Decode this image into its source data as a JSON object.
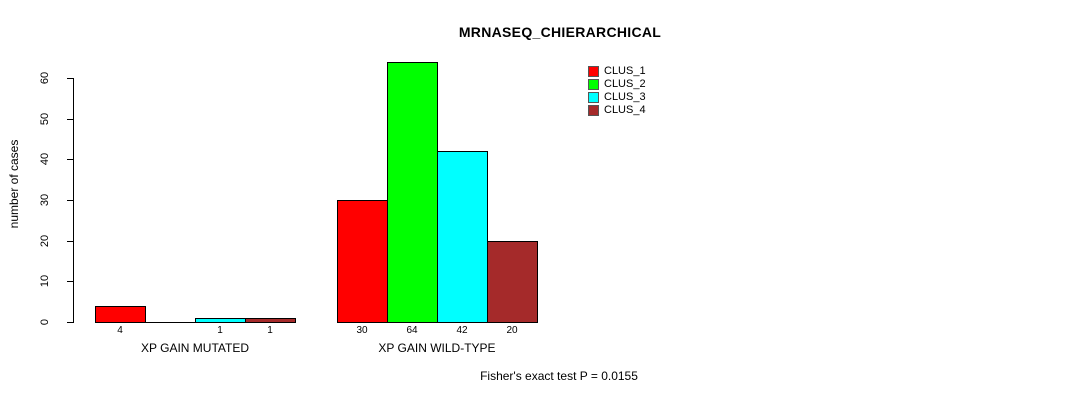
{
  "chart_data": {
    "type": "bar",
    "title": "MRNASEQ_CHIERARCHICAL",
    "ylabel": "number of cases",
    "xlabel": "",
    "ylim": [
      0,
      60
    ],
    "yticks": [
      0,
      10,
      20,
      30,
      40,
      50,
      60
    ],
    "grid": false,
    "categories": [
      "XP GAIN MUTATED",
      "XP GAIN WILD-TYPE"
    ],
    "series": [
      {
        "name": "CLUS_1",
        "color": "#ff0000",
        "values": [
          4,
          30
        ]
      },
      {
        "name": "CLUS_2",
        "color": "#00ff00",
        "values": [
          0,
          64
        ]
      },
      {
        "name": "CLUS_3",
        "color": "#00ffff",
        "values": [
          1,
          42
        ]
      },
      {
        "name": "CLUS_4",
        "color": "#a52a2a",
        "values": [
          1,
          20
        ]
      }
    ],
    "bar_value_labels": [
      [
        "4",
        "",
        "1",
        "1"
      ],
      [
        "30",
        "64",
        "42",
        "20"
      ]
    ],
    "legend": {
      "position": "top-right",
      "entries": [
        "CLUS_1",
        "CLUS_2",
        "CLUS_3",
        "CLUS_4"
      ]
    },
    "caption": "Fisher's exact test P = 0.0155"
  }
}
